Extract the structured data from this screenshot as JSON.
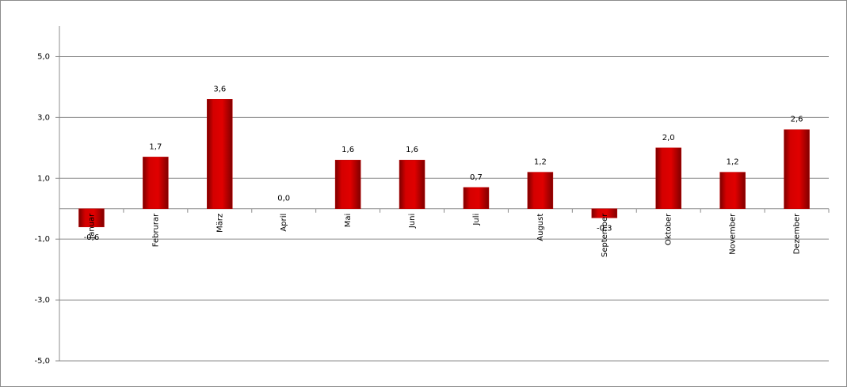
{
  "chart_data": {
    "type": "bar",
    "categories": [
      "Januar",
      "Februrar",
      "März",
      "April",
      "Mai",
      "Juni",
      "Juli",
      "August",
      "September",
      "Oktober",
      "November",
      "Dezember"
    ],
    "values": [
      -0.6,
      1.7,
      3.6,
      0.0,
      1.6,
      1.6,
      0.7,
      1.2,
      -0.3,
      2.0,
      1.2,
      2.6
    ],
    "value_labels": [
      "-0,6",
      "1,7",
      "3,6",
      "0,0",
      "1,6",
      "1,6",
      "0,7",
      "1,2",
      "-0,3",
      "2,0",
      "1,2",
      "2,6"
    ],
    "color": "#c00000",
    "ylim": [
      -5,
      6
    ],
    "yticks": [
      {
        "value": -5,
        "label": "-5,0"
      },
      {
        "value": -3,
        "label": "-3,0"
      },
      {
        "value": -1,
        "label": "-1,0"
      },
      {
        "value": 1,
        "label": "1,0"
      },
      {
        "value": 3,
        "label": "3,0"
      },
      {
        "value": 5,
        "label": "5,0"
      }
    ],
    "grid": true
  }
}
